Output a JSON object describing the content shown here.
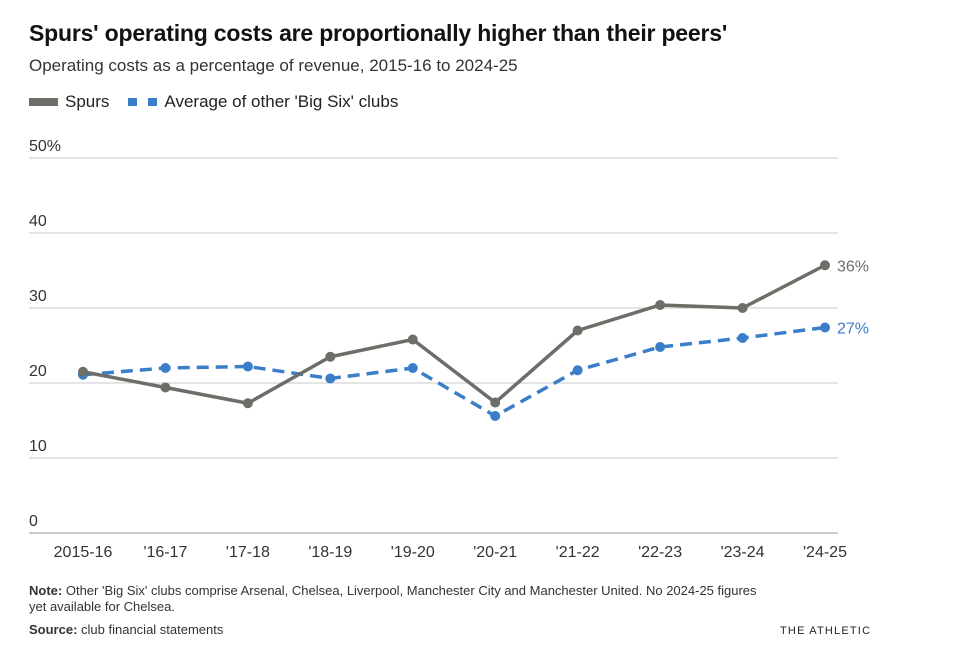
{
  "header": {
    "title": "Spurs' operating costs are proportionally higher than their peers'",
    "subtitle": "Operating costs as a percentage of revenue, 2015-16 to 2024-25"
  },
  "legend": {
    "spurs": "Spurs",
    "others": "Average of other 'Big Six' clubs"
  },
  "colors": {
    "spurs": "#6e6d68",
    "others": "#3a7dc9",
    "grid": "#c8c8c8",
    "axis_text": "#333333"
  },
  "chart_data": {
    "type": "line",
    "title": "Spurs' operating costs are proportionally higher than their peers'",
    "subtitle": "Operating costs as a percentage of revenue, 2015-16 to 2024-25",
    "categories": [
      "2015-16",
      "'16-17",
      "'17-18",
      "'18-19",
      "'19-20",
      "'20-21",
      "'21-22",
      "'22-23",
      "'23-24",
      "'24-25"
    ],
    "ylim": [
      0,
      50
    ],
    "yticks": [
      0,
      10,
      20,
      30,
      40,
      50
    ],
    "ytick_labels": [
      "0",
      "10",
      "20",
      "30",
      "40",
      "50%"
    ],
    "grid": true,
    "legend_position": "top-left",
    "series": [
      {
        "name": "Spurs",
        "style": "solid",
        "values": [
          21.5,
          19.4,
          17.3,
          23.5,
          25.8,
          17.4,
          27.0,
          30.4,
          30.0,
          35.7
        ],
        "end_label": "36%"
      },
      {
        "name": "Average of other 'Big Six' clubs",
        "style": "dashed",
        "values": [
          21.1,
          22.0,
          22.2,
          20.6,
          22.0,
          15.6,
          21.7,
          24.8,
          26.0,
          27.4
        ],
        "end_label": "27%"
      }
    ]
  },
  "footer": {
    "note_label": "Note:",
    "note_text": "Other 'Big Six' clubs comprise Arsenal, Chelsea, Liverpool, Manchester City and Manchester United. No 2024-25 figures yet available for Chelsea.",
    "source_label": "Source:",
    "source_text": "club financial statements",
    "brand": "THE ATHLETIC"
  }
}
